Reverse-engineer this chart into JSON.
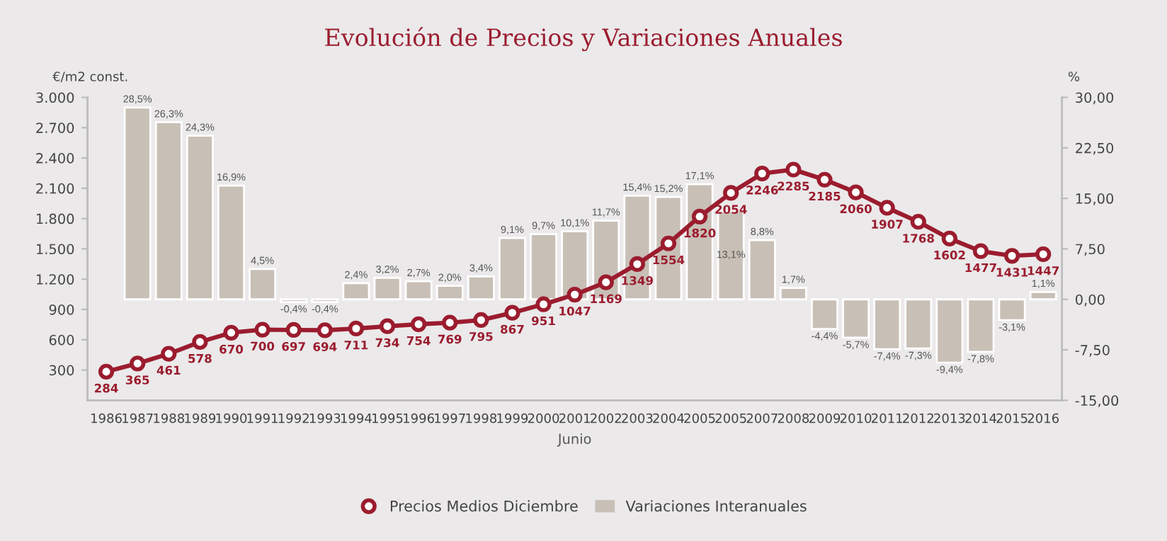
{
  "chart_data": {
    "type": "bar",
    "title": "Evolución de Precios y Variaciones Anuales",
    "xlabel": "Junio",
    "ylabel": "€/m2 const.",
    "y2label": "%",
    "categories": [
      "1986",
      "1987",
      "1988",
      "1989",
      "1990",
      "1991",
      "1992",
      "1993",
      "1994",
      "1995",
      "1996",
      "1997",
      "1998",
      "1999",
      "2000",
      "2001",
      "2002",
      "2003",
      "2004",
      "2005",
      "2005",
      "2007",
      "2008",
      "2009",
      "2010",
      "2011",
      "2012",
      "2013",
      "2014",
      "2015",
      "2016"
    ],
    "series": [
      {
        "name": "Precios Medios Diciembre",
        "type": "line",
        "axis": "y",
        "color": "#9b1c2e",
        "marker": "circle",
        "line_style": "solid",
        "values": [
          284,
          365,
          461,
          578,
          670,
          700,
          697,
          694,
          711,
          734,
          754,
          769,
          795,
          867,
          951,
          1047,
          1169,
          1349,
          1554,
          1820,
          2054,
          2246,
          2285,
          2185,
          2060,
          1907,
          1768,
          1602,
          1477,
          1431,
          1447
        ],
        "value_labels": [
          "284",
          "365",
          "461",
          "578",
          "670",
          "700",
          "697",
          "694",
          "711",
          "734",
          "754",
          "769",
          "795",
          "867",
          "951",
          "1047",
          "1169",
          "1349",
          "1554",
          "1820",
          "2054",
          "2246",
          "2285",
          "2185",
          "2060",
          "1907",
          "1768",
          "1602",
          "1477",
          "1431",
          "1447"
        ]
      },
      {
        "name": "Variaciones Interanuales",
        "axis": "y2",
        "color": "#c8bfb6",
        "values": [
          null,
          28.5,
          26.3,
          24.3,
          16.9,
          4.5,
          -0.4,
          -0.4,
          2.4,
          3.2,
          2.7,
          2.0,
          3.4,
          9.1,
          9.7,
          10.1,
          11.7,
          15.4,
          15.2,
          17.1,
          13.1,
          8.8,
          1.7,
          -4.4,
          -5.7,
          -7.4,
          -7.3,
          -9.4,
          -7.8,
          -3.1,
          1.1
        ],
        "value_labels": [
          null,
          "28,5%",
          "26,3%",
          "24,3%",
          "16,9%",
          "4,5%",
          "-0,4%",
          "-0,4%",
          "2,4%",
          "3,2%",
          "2,7%",
          "2,0%",
          "3,4%",
          "9,1%",
          "9,7%",
          "10,1%",
          "11,7%",
          "15,4%",
          "15,2%",
          "17,1%",
          "13,1%",
          "8,8%",
          "1,7%",
          "-4,4%",
          "-5,7%",
          "-7,4%",
          "-7,3%",
          "-9,4%",
          "-7,8%",
          "-3,1%",
          "1,1%"
        ]
      }
    ],
    "ylim": [
      0,
      3000
    ],
    "yticks": [
      {
        "value": 300,
        "label": "300"
      },
      {
        "value": 600,
        "label": "600"
      },
      {
        "value": 900,
        "label": "900"
      },
      {
        "value": 1200,
        "label": "1.200"
      },
      {
        "value": 1500,
        "label": "1.500"
      },
      {
        "value": 1800,
        "label": "1.800"
      },
      {
        "value": 2100,
        "label": "2.100"
      },
      {
        "value": 2400,
        "label": "2.400"
      },
      {
        "value": 2700,
        "label": "2.700"
      },
      {
        "value": 3000,
        "label": "3.000"
      }
    ],
    "y2lim": [
      -15,
      30
    ],
    "y2ticks": [
      {
        "value": -15,
        "label": "-15,00"
      },
      {
        "value": -7.5,
        "label": "-7,50"
      },
      {
        "value": 0,
        "label": "0,00"
      },
      {
        "value": 7.5,
        "label": "7,50"
      },
      {
        "value": 15,
        "label": "15,00"
      },
      {
        "value": 22.5,
        "label": "22,50"
      },
      {
        "value": 30,
        "label": "30,00"
      }
    ],
    "grid": false,
    "legend": "bottom"
  }
}
